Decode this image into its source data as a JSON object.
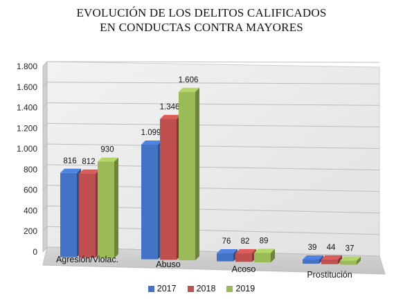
{
  "title_line1": "EVOLUCIÓN DE LOS DELITOS CALIFICADOS",
  "title_line2": "EN CONDUCTAS CONTRA MAYORES",
  "chart_data": {
    "type": "bar",
    "title": "EVOLUCIÓN DE LOS DELITOS CALIFICADOS EN CONDUCTAS CONTRA MAYORES",
    "xlabel": "",
    "ylabel": "",
    "categories": [
      "Agresión/Violac.",
      "Abuso",
      "Acoso",
      "Prostitución"
    ],
    "series": [
      {
        "name": "2017",
        "color": "#4472C4",
        "values": [
          816,
          1099,
          76,
          39
        ],
        "labels": [
          "816",
          "1.099",
          "76",
          "39"
        ]
      },
      {
        "name": "2018",
        "color": "#C0504D",
        "values": [
          812,
          1346,
          82,
          44
        ],
        "labels": [
          "812",
          "1.346",
          "82",
          "44"
        ]
      },
      {
        "name": "2019",
        "color": "#9BBB59",
        "values": [
          930,
          1606,
          89,
          37
        ],
        "labels": [
          "930",
          "1.606",
          "89",
          "37"
        ]
      }
    ],
    "ylim": [
      0,
      1800
    ],
    "yticks": [
      0,
      200,
      400,
      600,
      800,
      1000,
      1200,
      1400,
      1600,
      1800
    ],
    "ytick_labels": [
      "0",
      "200",
      "400",
      "600",
      "800",
      "1.000",
      "1.200",
      "1.400",
      "1.600",
      "1.800"
    ],
    "grid": true,
    "legend_position": "bottom",
    "style": "3d-clustered-column"
  }
}
